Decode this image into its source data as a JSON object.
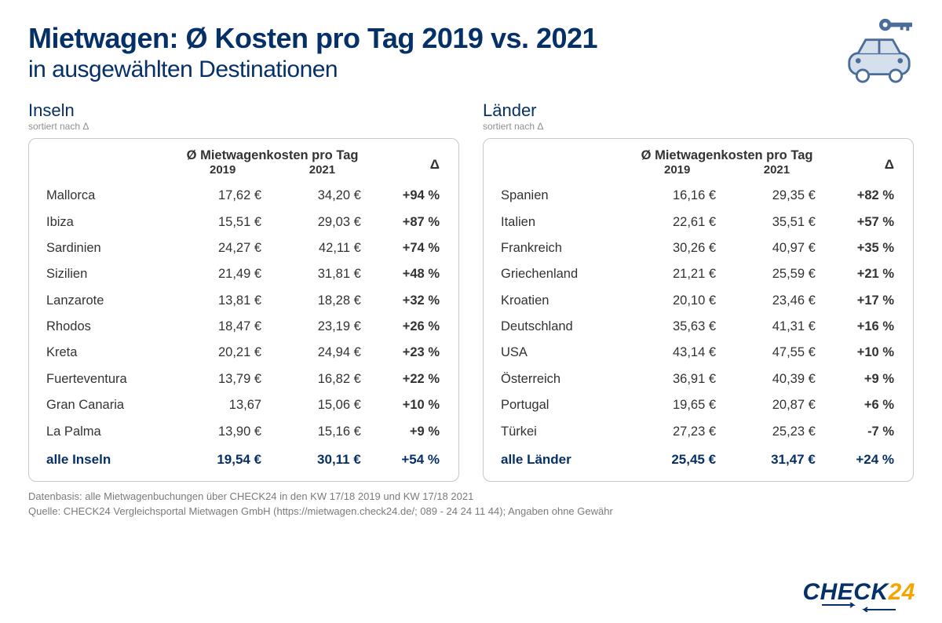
{
  "header": {
    "title": "Mietwagen: Ø Kosten pro Tag 2019 vs. 2021",
    "subtitle": "in ausgewählten Destinationen"
  },
  "panels": {
    "left": {
      "title": "Inseln",
      "sort_note": "sortiert nach Δ",
      "col_group": "Ø Mietwagenkosten pro Tag",
      "col_y1": "2019",
      "col_y2": "2021",
      "col_delta": "Δ",
      "rows": [
        {
          "name": "Mallorca",
          "y1": "17,62 €",
          "y2": "34,20 €",
          "delta": "+94 %"
        },
        {
          "name": "Ibiza",
          "y1": "15,51 €",
          "y2": "29,03 €",
          "delta": "+87 %"
        },
        {
          "name": "Sardinien",
          "y1": "24,27 €",
          "y2": "42,11 €",
          "delta": "+74 %"
        },
        {
          "name": "Sizilien",
          "y1": "21,49 €",
          "y2": "31,81 €",
          "delta": "+48 %"
        },
        {
          "name": "Lanzarote",
          "y1": "13,81 €",
          "y2": "18,28 €",
          "delta": "+32 %"
        },
        {
          "name": "Rhodos",
          "y1": "18,47 €",
          "y2": "23,19 €",
          "delta": "+26 %"
        },
        {
          "name": "Kreta",
          "y1": "20,21 €",
          "y2": "24,94 €",
          "delta": "+23 %"
        },
        {
          "name": "Fuerteventura",
          "y1": "13,79 €",
          "y2": "16,82  €",
          "delta": "+22 %"
        },
        {
          "name": "Gran Canaria",
          "y1": "13,67",
          "y2": "15,06 €",
          "delta": "+10 %"
        },
        {
          "name": "La Palma",
          "y1": "13,90 €",
          "y2": "15,16 €",
          "delta": "+9 %"
        }
      ],
      "total": {
        "name": "alle Inseln",
        "y1": "19,54 €",
        "y2": "30,11 €",
        "delta": "+54 %"
      }
    },
    "right": {
      "title": "Länder",
      "sort_note": "sortiert nach Δ",
      "col_group": "Ø Mietwagenkosten pro Tag",
      "col_y1": "2019",
      "col_y2": "2021",
      "col_delta": "Δ",
      "rows": [
        {
          "name": "Spanien",
          "y1": "16,16 €",
          "y2": "29,35 €",
          "delta": "+82 %"
        },
        {
          "name": "Italien",
          "y1": "22,61 €",
          "y2": "35,51 €",
          "delta": "+57 %"
        },
        {
          "name": "Frankreich",
          "y1": "30,26 €",
          "y2": "40,97 €",
          "delta": "+35 %"
        },
        {
          "name": "Griechenland",
          "y1": "21,21 €",
          "y2": "25,59 €",
          "delta": "+21 %"
        },
        {
          "name": "Kroatien",
          "y1": "20,10 €",
          "y2": "23,46 €",
          "delta": "+17 %"
        },
        {
          "name": "Deutschland",
          "y1": "35,63 €",
          "y2": "41,31 €",
          "delta": "+16 %"
        },
        {
          "name": "USA",
          "y1": "43,14 €",
          "y2": "47,55 €",
          "delta": "+10 %"
        },
        {
          "name": "Österreich",
          "y1": "36,91 €",
          "y2": "40,39 €",
          "delta": "+9 %"
        },
        {
          "name": "Portugal",
          "y1": "19,65 €",
          "y2": "20,87 €",
          "delta": "+6 %"
        },
        {
          "name": "Türkei",
          "y1": "27,23 €",
          "y2": "25,23 €",
          "delta": "-7 %"
        }
      ],
      "total": {
        "name": "alle Länder",
        "y1": "25,45 €",
        "y2": "31,47 €",
        "delta": "+24 %"
      }
    }
  },
  "footer": {
    "line1": "Datenbasis: alle Mietwagenbuchungen über CHECK24 in den KW 17/18 2019 und KW 17/18 2021",
    "line2": "Quelle: CHECK24 Vergleichsportal Mietwagen GmbH (https://mietwagen.check24.de/; 089 - 24 24 11 44); Angaben ohne Gewähr"
  },
  "logo": {
    "part1": "CHECK",
    "part2": "24"
  },
  "style": {
    "brand_color": "#063068",
    "accent_color": "#f7a400",
    "border_color": "#c8c8c8",
    "text_color": "#333333",
    "muted_color": "#7b7b7b",
    "icon_color": "#4a6d99",
    "icon_bg": "#d6e0ed"
  }
}
